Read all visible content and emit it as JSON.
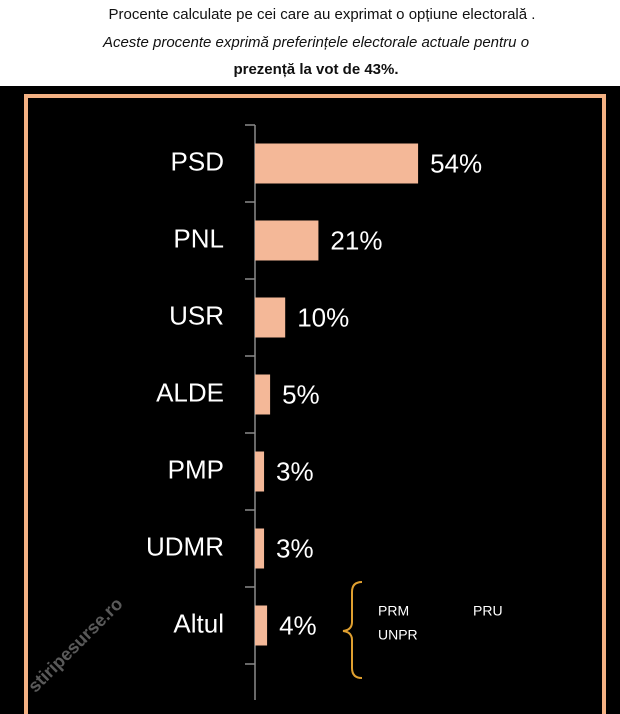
{
  "chart_data": {
    "type": "hbar",
    "title": "Procente calculate pe  cei care au exprimat o opțiune electorală .",
    "subtitle": "Aceste procente  exprimă  preferințele electorale actuale pentru o",
    "note": "prezență la vot de 43%.",
    "categories": [
      "PSD",
      "PNL",
      "USR",
      "ALDE",
      "PMP",
      "UDMR",
      "Altul"
    ],
    "values": [
      54,
      21,
      10,
      5,
      3,
      3,
      4
    ],
    "value_labels": [
      "54%",
      "21%",
      "10%",
      "5%",
      "3%",
      "3%",
      "4%"
    ],
    "color": "#f4b898",
    "annotations": [
      "PRM",
      "PRU",
      "UNPR"
    ],
    "watermark": "stiripesurse.ro"
  }
}
